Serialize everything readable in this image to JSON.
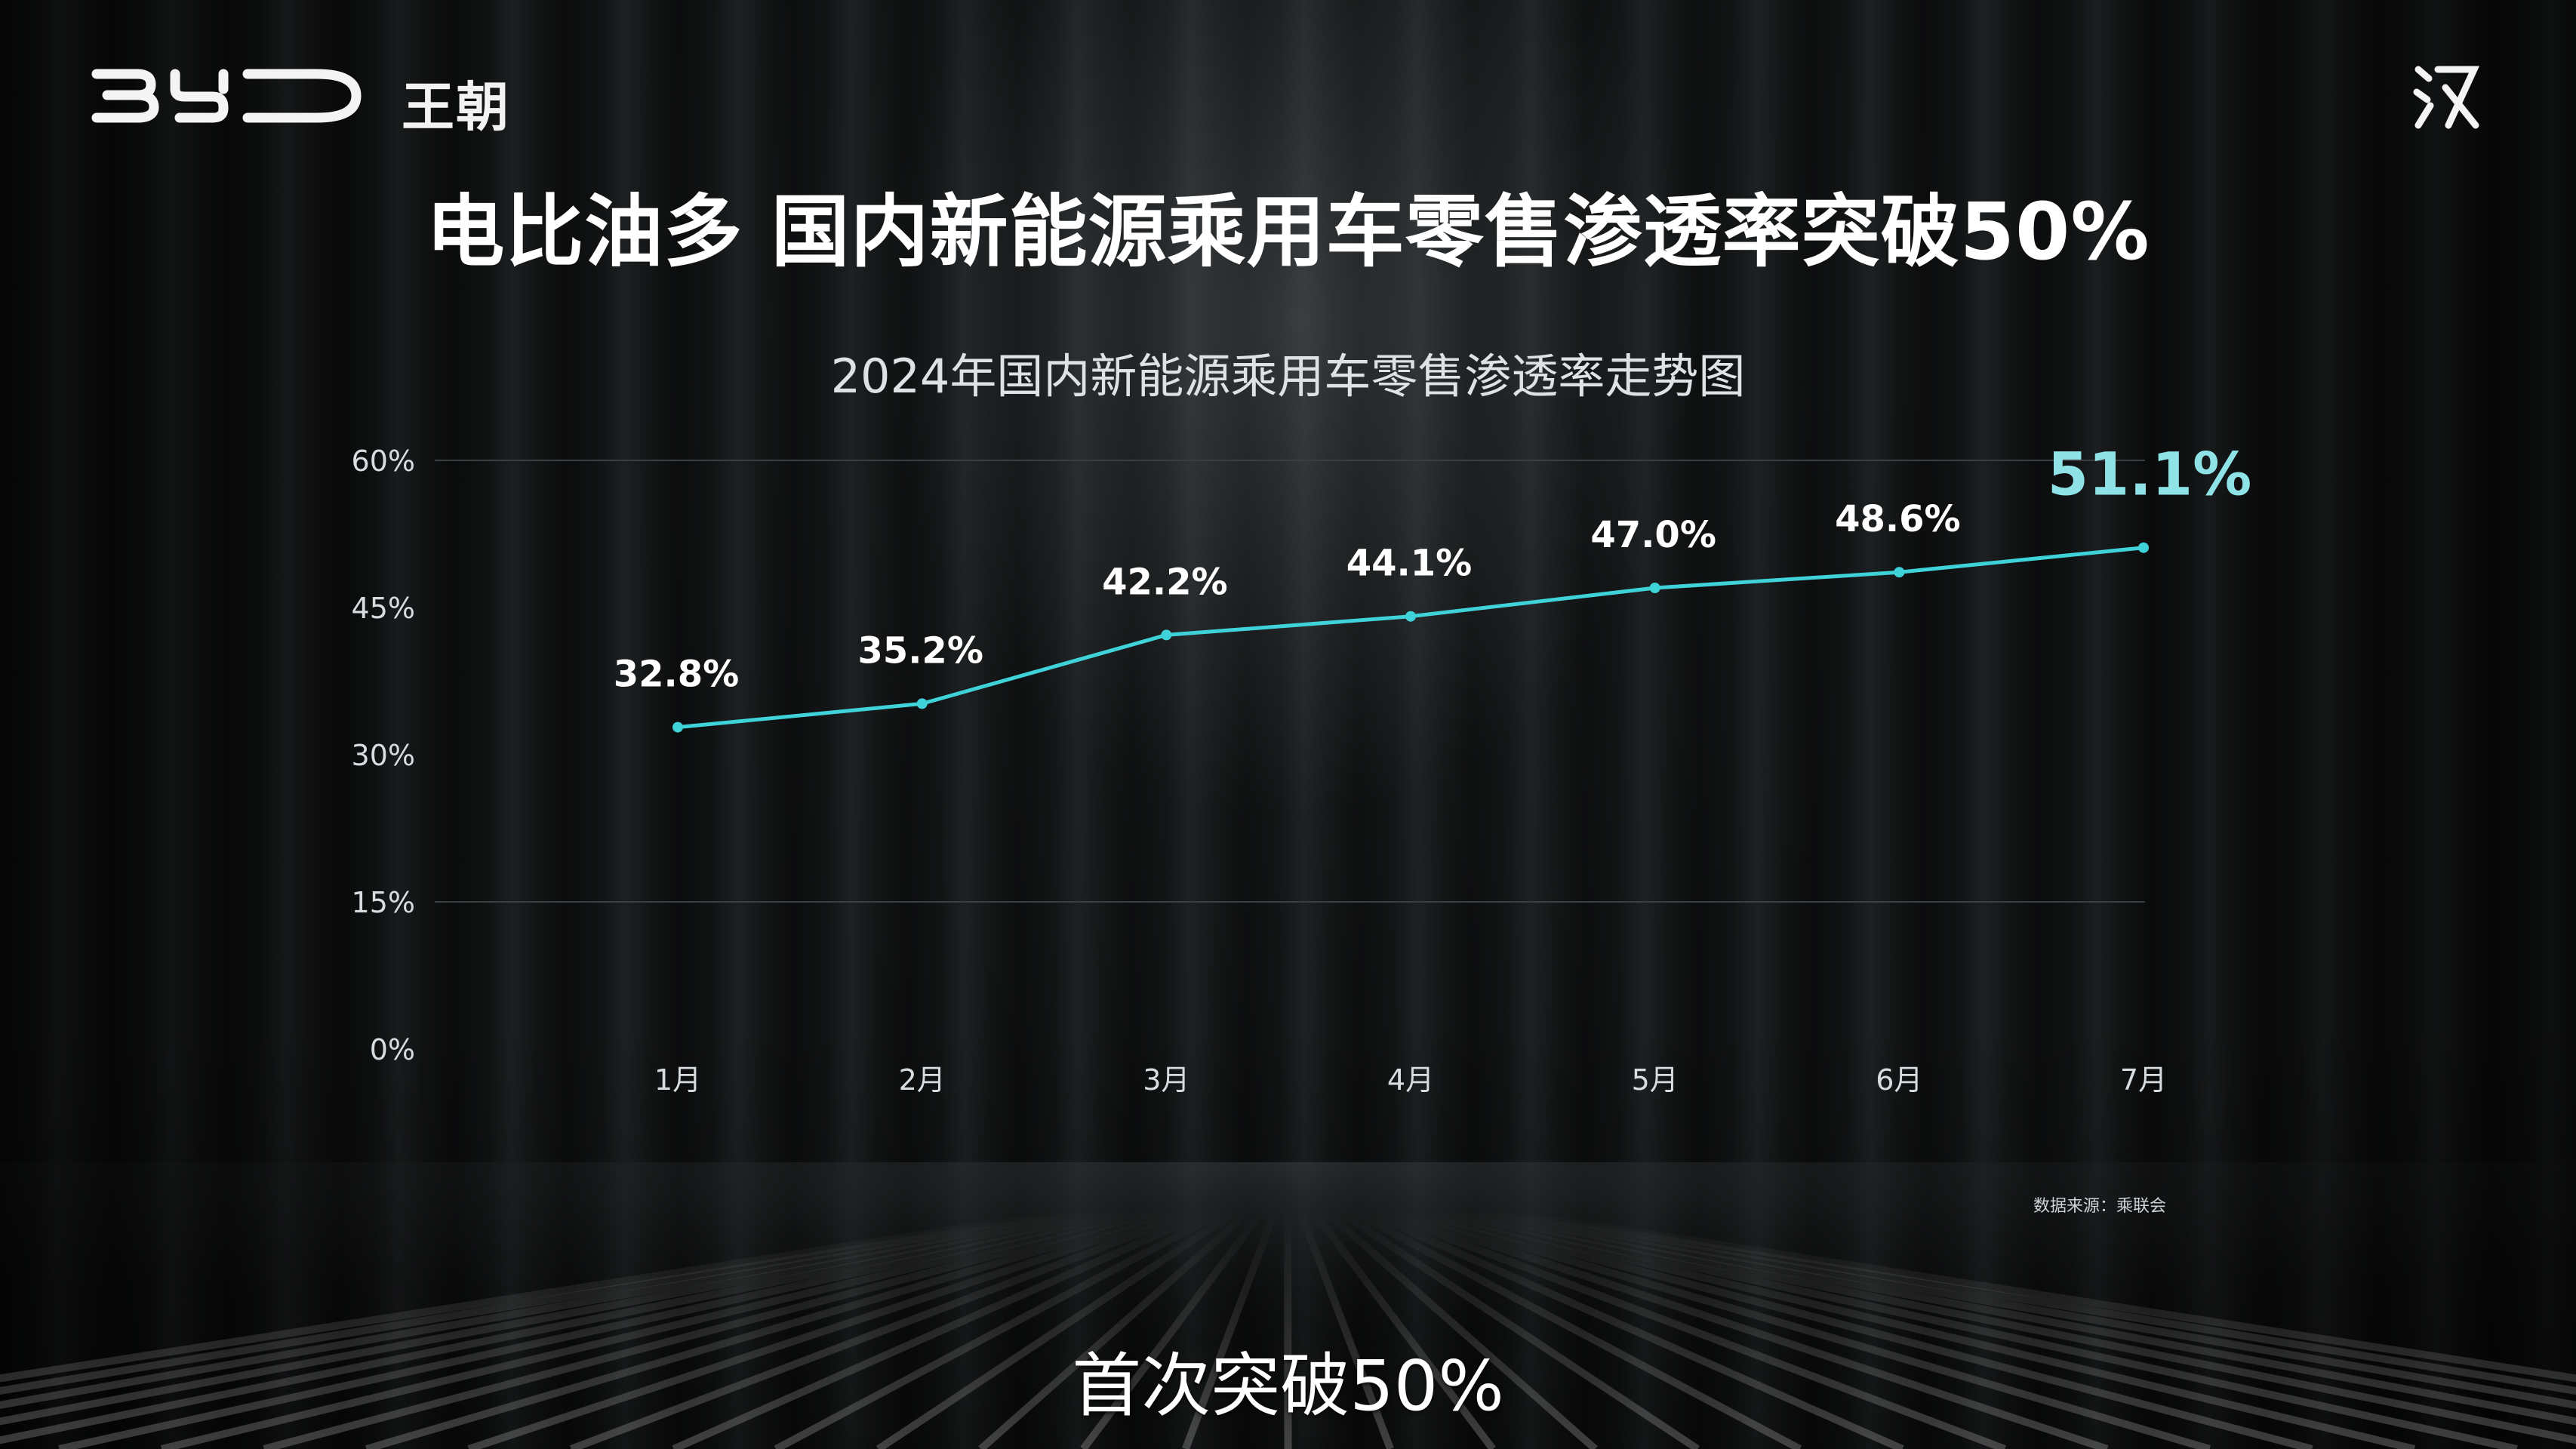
{
  "brand": {
    "logo_icon": "byd-logo-icon",
    "series": "王朝",
    "corner_icon": "han-logo-icon"
  },
  "slide": {
    "title": "电比油多 国内新能源乘用车零售渗透率突破50%",
    "caption": "首次突破50%",
    "source": "数据来源：乘联会"
  },
  "colors": {
    "line": "#3fd3d9",
    "highlight_label": "#8fe3e6",
    "text": "#ffffff",
    "axis_text": "#d9dcde",
    "grid": "#3a3e41"
  },
  "chart_data": {
    "type": "line",
    "title": "2024年国内新能源乘用车零售渗透率走势图",
    "categories": [
      "1月",
      "2月",
      "3月",
      "4月",
      "5月",
      "6月",
      "7月"
    ],
    "series": [
      {
        "values": [
          32.8,
          35.2,
          42.2,
          44.1,
          47.0,
          48.6,
          51.1
        ],
        "labels": [
          "32.8%",
          "35.2%",
          "42.2%",
          "44.1%",
          "47.0%",
          "48.6%",
          "51.1%"
        ]
      }
    ],
    "y_ticks": [
      "0%",
      "15%",
      "30%",
      "45%",
      "60%"
    ],
    "y_tick_values": [
      0,
      15,
      30,
      45,
      60
    ],
    "ylim": [
      0,
      60
    ],
    "grid": "partial",
    "highlight_index": 6
  }
}
